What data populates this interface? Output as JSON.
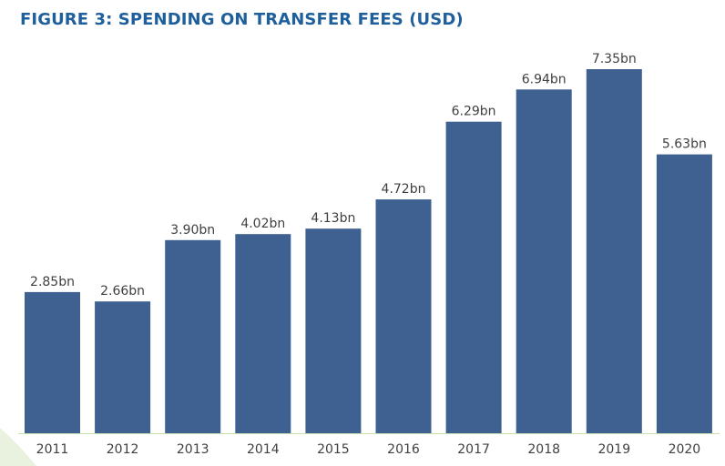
{
  "title": "FIGURE 3: SPENDING ON TRANSFER FEES (USD)",
  "colors": {
    "bar": "#3e6191",
    "title": "#1f5f9c",
    "label": "#404040",
    "baseline": "#c8dfb1",
    "accent_leaf": "#e8f2df"
  },
  "chart_data": {
    "type": "bar",
    "title": "FIGURE 3: SPENDING ON TRANSFER FEES (USD)",
    "categories": [
      "2011",
      "2012",
      "2013",
      "2014",
      "2015",
      "2016",
      "2017",
      "2018",
      "2019",
      "2020"
    ],
    "values": [
      2.85,
      2.66,
      3.9,
      4.02,
      4.13,
      4.72,
      6.29,
      6.94,
      7.35,
      5.63
    ],
    "value_labels": [
      "2.85bn",
      "2.66bn",
      "3.90bn",
      "4.02bn",
      "4.13bn",
      "4.72bn",
      "6.29bn",
      "6.94bn",
      "7.35bn",
      "5.63bn"
    ],
    "unit": "bn",
    "xlabel": "",
    "ylabel": "",
    "ylim": [
      0,
      7.35
    ],
    "grid": false,
    "legend": "none"
  }
}
